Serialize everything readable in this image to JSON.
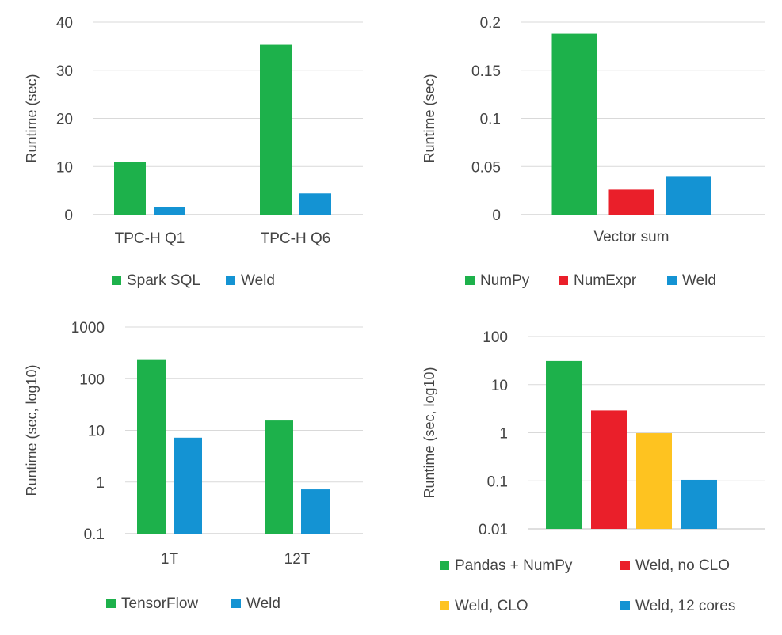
{
  "chart_data": [
    {
      "type": "bar",
      "ylabel": "Runtime (sec)",
      "scale": "linear",
      "ylim": [
        0,
        40
      ],
      "yticks": [
        "0",
        "10",
        "20",
        "30",
        "40"
      ],
      "grid": true,
      "legend": "bottom",
      "categories": [
        "TPC-H Q1",
        "TPC-H Q6"
      ],
      "series": [
        {
          "name": "Spark SQL",
          "color": "#1db14b",
          "values": [
            11,
            35.3
          ]
        },
        {
          "name": "Weld",
          "color": "#1493d3",
          "values": [
            1.6,
            4.4
          ]
        }
      ]
    },
    {
      "type": "bar",
      "ylabel": "Runtime (sec)",
      "scale": "linear",
      "ylim": [
        0,
        0.2
      ],
      "yticks": [
        "0",
        "0.05",
        "0.1",
        "0.15",
        "0.2"
      ],
      "grid": true,
      "legend": "bottom",
      "categories": [
        "Vector sum"
      ],
      "series": [
        {
          "name": "NumPy",
          "color": "#1db14b",
          "values": [
            0.188
          ]
        },
        {
          "name": "NumExpr",
          "color": "#ea1f2a",
          "values": [
            0.026
          ]
        },
        {
          "name": "Weld",
          "color": "#1493d3",
          "values": [
            0.04
          ]
        }
      ]
    },
    {
      "type": "bar",
      "ylabel": "Runtime (sec, log10)",
      "scale": "log",
      "ylim": [
        0.1,
        1000
      ],
      "yticks": [
        "0.1",
        "1",
        "10",
        "100",
        "1000"
      ],
      "grid": true,
      "legend": "bottom",
      "categories": [
        "1T",
        "12T"
      ],
      "series": [
        {
          "name": "TensorFlow",
          "color": "#1db14b",
          "values": [
            230,
            15.5
          ]
        },
        {
          "name": "Weld",
          "color": "#1493d3",
          "values": [
            7.2,
            0.72
          ]
        }
      ]
    },
    {
      "type": "bar",
      "ylabel": "Runtime (sec, log10)",
      "scale": "log",
      "ylim": [
        0.01,
        100
      ],
      "yticks": [
        "0.01",
        "0.1",
        "1",
        "10",
        "100"
      ],
      "grid": true,
      "legend": "bottom",
      "categories": [
        ""
      ],
      "series": [
        {
          "name": "Pandas + NumPy",
          "color": "#1db14b",
          "values": [
            31
          ]
        },
        {
          "name": "Weld, no CLO",
          "color": "#ea1f2a",
          "values": [
            2.9
          ]
        },
        {
          "name": "Weld, CLO",
          "color": "#fec320",
          "values": [
            0.98
          ]
        },
        {
          "name": "Weld, 12 cores",
          "color": "#1493d3",
          "values": [
            0.105
          ]
        }
      ]
    }
  ]
}
